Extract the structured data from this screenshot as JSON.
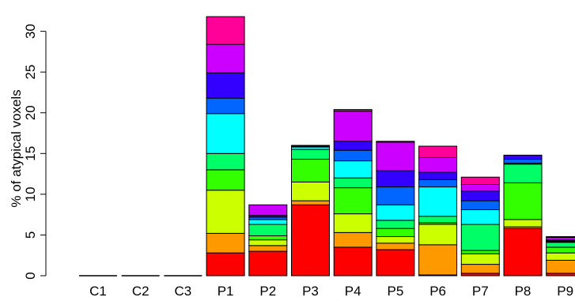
{
  "chart_data": {
    "type": "bar",
    "stacked": true,
    "ylabel": "% of atypical voxels",
    "xlabel": "",
    "ylim": [
      0,
      32
    ],
    "yticks": [
      0,
      5,
      10,
      15,
      20,
      25,
      30
    ],
    "grid": false,
    "legend": "none",
    "categories": [
      "C1",
      "C2",
      "C3",
      "P1",
      "P2",
      "P3",
      "P4",
      "P5",
      "P6",
      "P7",
      "P8",
      "P9"
    ],
    "segment_colors": [
      "#ff0000",
      "#ff9900",
      "#ccff00",
      "#33ff00",
      "#00ff66",
      "#00ffff",
      "#0066ff",
      "#3300ff",
      "#cc00ff",
      "#ff0099"
    ],
    "series": [
      {
        "values": [
          0,
          0,
          0,
          2.8,
          3.0,
          8.7,
          3.5,
          3.2,
          0.1,
          0.3,
          5.8,
          0.3
        ]
      },
      {
        "values": [
          0,
          0,
          0,
          2.4,
          0.7,
          0.5,
          1.8,
          0.8,
          3.7,
          1.1,
          0.2,
          1.6
        ]
      },
      {
        "values": [
          0,
          0,
          0,
          5.3,
          0.7,
          2.3,
          2.3,
          0.8,
          2.5,
          1.3,
          0.9,
          0.9
        ]
      },
      {
        "values": [
          0,
          0,
          0,
          2.5,
          0.5,
          2.8,
          3.2,
          1.0,
          0.2,
          0.4,
          4.5,
          0.7
        ]
      },
      {
        "values": [
          0,
          0,
          0,
          2.0,
          1.4,
          1.2,
          1.2,
          1.0,
          0.8,
          3.2,
          2.3,
          0.6
        ]
      },
      {
        "values": [
          0,
          0,
          0,
          4.9,
          0.6,
          0.3,
          2.1,
          1.9,
          3.6,
          1.8,
          0.1,
          0.1
        ]
      },
      {
        "values": [
          0,
          0,
          0,
          1.9,
          0.3,
          0.1,
          1.3,
          2.2,
          0.9,
          1.1,
          0.5,
          0.1
        ]
      },
      {
        "values": [
          0,
          0,
          0,
          3.1,
          0.2,
          0.1,
          1.1,
          2.0,
          0.9,
          1.2,
          0.5,
          0.1
        ]
      },
      {
        "values": [
          0,
          0,
          0,
          3.5,
          1.3,
          0,
          3.7,
          3.5,
          1.8,
          0.8,
          0,
          0.3
        ]
      },
      {
        "values": [
          0,
          0,
          0,
          3.4,
          0,
          0,
          0.2,
          0.1,
          1.4,
          0.9,
          0,
          0.1
        ]
      }
    ]
  }
}
